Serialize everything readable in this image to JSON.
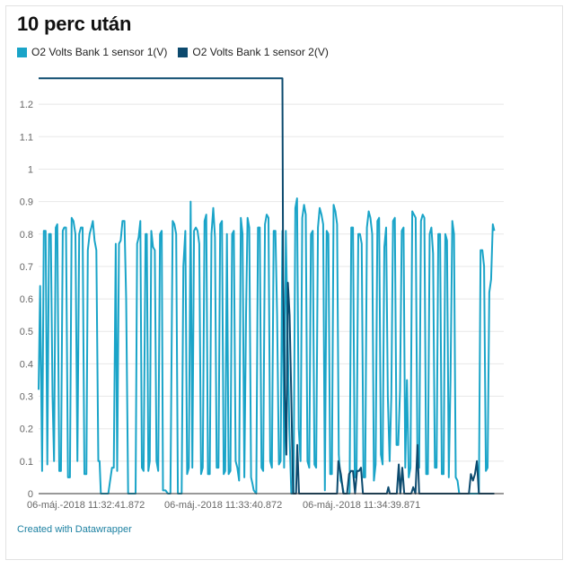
{
  "page": {
    "title": "10 perc után",
    "credit": "Created with Datawrapper"
  },
  "chart_data": {
    "type": "line",
    "title": "10 perc után",
    "ylim": [
      0,
      1.3
    ],
    "grid": true,
    "legend_position": "top-left",
    "y_ticks": [
      "0",
      "0.1",
      "0.2",
      "0.3",
      "0.4",
      "0.5",
      "0.6",
      "0.7",
      "0.8",
      "0.9",
      "1",
      "1.1",
      "1.2"
    ],
    "x_tick_labels": [
      "06-máj.-2018 11:32:41.872",
      "06-máj.-2018 11:33:40.872",
      "06-máj.-2018 11:34:39.871"
    ],
    "x_range_seconds": [
      0,
      187
    ],
    "series": [
      {
        "name": "O2 Volts Bank 1 sensor 1(V)",
        "color": "#1aa4c8",
        "points": [
          [
            0.0,
            0.32
          ],
          [
            0.6,
            0.64
          ],
          [
            1.4,
            0.07
          ],
          [
            2.1,
            0.81
          ],
          [
            2.8,
            0.81
          ],
          [
            3.5,
            0.09
          ],
          [
            4.2,
            0.8
          ],
          [
            4.9,
            0.8
          ],
          [
            5.6,
            0.3
          ],
          [
            6.2,
            0.1
          ],
          [
            6.9,
            0.82
          ],
          [
            7.5,
            0.83
          ],
          [
            8.3,
            0.07
          ],
          [
            9.0,
            0.07
          ],
          [
            9.7,
            0.81
          ],
          [
            10.3,
            0.82
          ],
          [
            11.0,
            0.82
          ],
          [
            11.8,
            0.05
          ],
          [
            12.6,
            0.05
          ],
          [
            13.3,
            0.85
          ],
          [
            14.0,
            0.84
          ],
          [
            14.8,
            0.8
          ],
          [
            15.6,
            0.1
          ],
          [
            16.3,
            0.8
          ],
          [
            17.0,
            0.82
          ],
          [
            17.7,
            0.82
          ],
          [
            18.4,
            0.06
          ],
          [
            19.2,
            0.06
          ],
          [
            19.8,
            0.75
          ],
          [
            20.5,
            0.8
          ],
          [
            21.2,
            0.82
          ],
          [
            21.8,
            0.84
          ],
          [
            22.5,
            0.78
          ],
          [
            23.2,
            0.75
          ],
          [
            24.0,
            0.1
          ],
          [
            24.5,
            0.1
          ],
          [
            25.0,
            0.0
          ],
          [
            28.0,
            0.0
          ],
          [
            29.5,
            0.08
          ],
          [
            30.2,
            0.08
          ],
          [
            31.0,
            0.77
          ],
          [
            31.6,
            0.07
          ],
          [
            32.3,
            0.77
          ],
          [
            33.0,
            0.78
          ],
          [
            33.7,
            0.84
          ],
          [
            34.5,
            0.84
          ],
          [
            35.2,
            0.6
          ],
          [
            36.0,
            0.0
          ],
          [
            39.0,
            0.0
          ],
          [
            39.6,
            0.77
          ],
          [
            40.2,
            0.79
          ],
          [
            40.9,
            0.84
          ],
          [
            41.5,
            0.08
          ],
          [
            42.2,
            0.07
          ],
          [
            43.0,
            0.8
          ],
          [
            43.5,
            0.8
          ],
          [
            44.1,
            0.07
          ],
          [
            44.7,
            0.1
          ],
          [
            45.3,
            0.81
          ],
          [
            46.0,
            0.76
          ],
          [
            46.7,
            0.75
          ],
          [
            47.4,
            0.1
          ],
          [
            48.1,
            0.07
          ],
          [
            48.8,
            0.8
          ],
          [
            49.5,
            0.81
          ],
          [
            50.0,
            0.01
          ],
          [
            51.0,
            0.01
          ],
          [
            52.0,
            0.0
          ],
          [
            53.0,
            0.0
          ],
          [
            53.9,
            0.84
          ],
          [
            54.6,
            0.83
          ],
          [
            55.3,
            0.8
          ],
          [
            56.0,
            0.0
          ],
          [
            57.5,
            0.0
          ],
          [
            58.2,
            0.7
          ],
          [
            59.0,
            0.81
          ],
          [
            59.7,
            0.06
          ],
          [
            60.4,
            0.08
          ],
          [
            61.1,
            0.9
          ],
          [
            61.8,
            0.08
          ],
          [
            62.5,
            0.81
          ],
          [
            63.2,
            0.82
          ],
          [
            63.9,
            0.81
          ],
          [
            64.6,
            0.77
          ],
          [
            65.3,
            0.06
          ],
          [
            66.0,
            0.08
          ],
          [
            66.7,
            0.84
          ],
          [
            67.4,
            0.86
          ],
          [
            68.1,
            0.06
          ],
          [
            68.8,
            0.06
          ],
          [
            69.5,
            0.8
          ],
          [
            70.2,
            0.88
          ],
          [
            70.9,
            0.79
          ],
          [
            71.6,
            0.08
          ],
          [
            72.3,
            0.08
          ],
          [
            73.0,
            0.83
          ],
          [
            73.7,
            0.84
          ],
          [
            74.4,
            0.06
          ],
          [
            75.0,
            0.07
          ],
          [
            75.7,
            0.8
          ],
          [
            76.4,
            0.06
          ],
          [
            77.1,
            0.07
          ],
          [
            77.8,
            0.8
          ],
          [
            78.5,
            0.81
          ],
          [
            79.2,
            0.1
          ],
          [
            79.9,
            0.08
          ],
          [
            80.6,
            0.04
          ],
          [
            81.3,
            0.85
          ],
          [
            82.0,
            0.8
          ],
          [
            82.7,
            0.05
          ],
          [
            83.4,
            0.55
          ],
          [
            84.0,
            0.85
          ],
          [
            84.7,
            0.82
          ],
          [
            85.4,
            0.05
          ],
          [
            86.0,
            0.03
          ],
          [
            86.5,
            0.01
          ],
          [
            87.5,
            0.0
          ],
          [
            88.2,
            0.82
          ],
          [
            88.9,
            0.82
          ],
          [
            89.6,
            0.08
          ],
          [
            90.3,
            0.07
          ],
          [
            91.0,
            0.83
          ],
          [
            91.7,
            0.86
          ],
          [
            92.4,
            0.85
          ],
          [
            93.1,
            0.1
          ],
          [
            93.8,
            0.08
          ],
          [
            94.5,
            0.81
          ],
          [
            95.2,
            0.81
          ],
          [
            95.9,
            0.55
          ],
          [
            96.6,
            0.09
          ],
          [
            97.3,
            0.1
          ],
          [
            98.0,
            0.81
          ],
          [
            98.7,
            0.08
          ],
          [
            99.4,
            0.81
          ],
          [
            100.1,
            0.5
          ],
          [
            100.8,
            0.2
          ],
          [
            101.6,
            0.0
          ],
          [
            102.5,
            0.0
          ],
          [
            103.2,
            0.88
          ],
          [
            103.9,
            0.91
          ],
          [
            104.6,
            0.2
          ],
          [
            105.3,
            0.1
          ],
          [
            106.0,
            0.85
          ],
          [
            106.7,
            0.89
          ],
          [
            107.4,
            0.86
          ],
          [
            108.1,
            0.1
          ],
          [
            108.8,
            0.08
          ],
          [
            109.5,
            0.8
          ],
          [
            110.2,
            0.81
          ],
          [
            110.9,
            0.09
          ],
          [
            111.6,
            0.08
          ],
          [
            112.3,
            0.82
          ],
          [
            113.0,
            0.88
          ],
          [
            113.7,
            0.86
          ],
          [
            114.4,
            0.83
          ],
          [
            115.1,
            0.01
          ],
          [
            115.8,
            0.81
          ],
          [
            116.5,
            0.8
          ],
          [
            117.2,
            0.06
          ],
          [
            117.9,
            0.06
          ],
          [
            118.6,
            0.89
          ],
          [
            119.3,
            0.87
          ],
          [
            120.0,
            0.83
          ],
          [
            120.7,
            0.12
          ],
          [
            121.4,
            0.04
          ],
          [
            122.0,
            0.03
          ],
          [
            122.7,
            0.0
          ],
          [
            125.0,
            0.0
          ],
          [
            125.7,
            0.82
          ],
          [
            126.4,
            0.82
          ],
          [
            127.1,
            0.05
          ],
          [
            127.8,
            0.05
          ],
          [
            128.5,
            0.8
          ],
          [
            129.2,
            0.8
          ],
          [
            129.9,
            0.77
          ],
          [
            130.6,
            0.05
          ],
          [
            131.3,
            0.05
          ],
          [
            132.0,
            0.82
          ],
          [
            132.7,
            0.87
          ],
          [
            133.4,
            0.85
          ],
          [
            134.1,
            0.8
          ],
          [
            134.8,
            0.04
          ],
          [
            135.5,
            0.09
          ],
          [
            136.2,
            0.84
          ],
          [
            136.9,
            0.85
          ],
          [
            137.6,
            0.12
          ],
          [
            138.3,
            0.09
          ],
          [
            139.0,
            0.76
          ],
          [
            139.7,
            0.82
          ],
          [
            140.4,
            0.3
          ],
          [
            141.1,
            0.1
          ],
          [
            141.8,
            0.3
          ],
          [
            142.5,
            0.84
          ],
          [
            143.2,
            0.85
          ],
          [
            143.9,
            0.15
          ],
          [
            144.6,
            0.15
          ],
          [
            145.3,
            0.32
          ],
          [
            146.0,
            0.81
          ],
          [
            146.7,
            0.82
          ],
          [
            147.4,
            0.08
          ],
          [
            148.1,
            0.35
          ],
          [
            148.8,
            0.05
          ],
          [
            149.5,
            0.08
          ],
          [
            150.2,
            0.87
          ],
          [
            150.9,
            0.86
          ],
          [
            151.6,
            0.85
          ],
          [
            152.3,
            0.1
          ],
          [
            153.0,
            0.08
          ],
          [
            153.7,
            0.84
          ],
          [
            154.4,
            0.86
          ],
          [
            155.1,
            0.85
          ],
          [
            155.8,
            0.06
          ],
          [
            156.5,
            0.06
          ],
          [
            157.2,
            0.8
          ],
          [
            157.9,
            0.82
          ],
          [
            158.6,
            0.74
          ],
          [
            159.3,
            0.08
          ],
          [
            160.0,
            0.08
          ],
          [
            160.7,
            0.8
          ],
          [
            161.4,
            0.8
          ],
          [
            162.1,
            0.06
          ],
          [
            162.8,
            0.06
          ],
          [
            163.5,
            0.8
          ],
          [
            164.2,
            0.78
          ],
          [
            164.9,
            0.05
          ],
          [
            165.6,
            0.35
          ],
          [
            166.3,
            0.84
          ],
          [
            167.0,
            0.8
          ],
          [
            167.7,
            0.05
          ],
          [
            168.4,
            0.04
          ],
          [
            169.1,
            0.0
          ],
          [
            177.0,
            0.0
          ],
          [
            177.7,
            0.75
          ],
          [
            178.4,
            0.75
          ],
          [
            179.1,
            0.7
          ],
          [
            179.8,
            0.07
          ],
          [
            180.5,
            0.08
          ],
          [
            181.2,
            0.62
          ],
          [
            181.9,
            0.66
          ],
          [
            182.6,
            0.83
          ],
          [
            183.2,
            0.81
          ]
        ]
      },
      {
        "name": "O2 Volts Bank 1 sensor 2(V)",
        "color": "#0c4a6e",
        "points": [
          [
            0.0,
            1.28
          ],
          [
            98.0,
            1.28
          ],
          [
            98.3,
            0.66
          ],
          [
            99.0,
            0.3
          ],
          [
            99.6,
            0.12
          ],
          [
            100.2,
            0.65
          ],
          [
            100.9,
            0.55
          ],
          [
            101.6,
            0.3
          ],
          [
            102.3,
            0.0
          ],
          [
            103.5,
            0.0
          ],
          [
            104.0,
            0.15
          ],
          [
            104.7,
            0.0
          ],
          [
            120.0,
            0.0
          ],
          [
            120.5,
            0.1
          ],
          [
            121.5,
            0.06
          ],
          [
            122.5,
            0.0
          ],
          [
            124.0,
            0.0
          ],
          [
            124.8,
            0.06
          ],
          [
            125.6,
            0.07
          ],
          [
            126.4,
            0.07
          ],
          [
            127.2,
            0.0
          ],
          [
            128.0,
            0.07
          ],
          [
            128.8,
            0.07
          ],
          [
            129.6,
            0.08
          ],
          [
            130.4,
            0.0
          ],
          [
            140.0,
            0.0
          ],
          [
            140.6,
            0.02
          ],
          [
            141.2,
            0.0
          ],
          [
            144.0,
            0.0
          ],
          [
            144.8,
            0.09
          ],
          [
            145.4,
            0.0
          ],
          [
            146.2,
            0.08
          ],
          [
            147.0,
            0.0
          ],
          [
            149.8,
            0.0
          ],
          [
            150.6,
            0.02
          ],
          [
            151.5,
            0.0
          ],
          [
            152.3,
            0.15
          ],
          [
            153.0,
            0.0
          ],
          [
            173.0,
            0.0
          ],
          [
            173.8,
            0.06
          ],
          [
            174.6,
            0.04
          ],
          [
            175.4,
            0.06
          ],
          [
            176.2,
            0.1
          ],
          [
            177.0,
            0.0
          ],
          [
            183.2,
            0.0
          ]
        ]
      }
    ]
  }
}
